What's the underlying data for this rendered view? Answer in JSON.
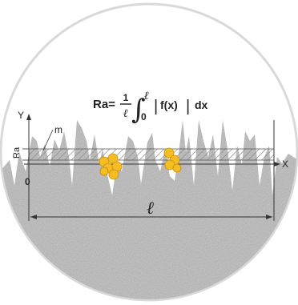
{
  "diagram": {
    "formula": {
      "lhs": "Ra=",
      "frac_num": "1",
      "frac_den": "ℓ",
      "integral": "∫",
      "upper_limit": "ℓ",
      "lower_limit": "0",
      "abs_open": "|",
      "func": "f(x)",
      "abs_close": "|",
      "dx": "dx"
    },
    "axes": {
      "y_label": "Y",
      "x_label": "X",
      "origin_label": "0",
      "ra_label": "Ra",
      "mean_line_label": "m",
      "length_label": "ℓ"
    },
    "colors": {
      "material": "#b9b9b9",
      "hatch_band": "#9a9a9a",
      "particles": "#f4bd22",
      "particle_stroke": "#d08a10",
      "lines": "#333333"
    }
  }
}
